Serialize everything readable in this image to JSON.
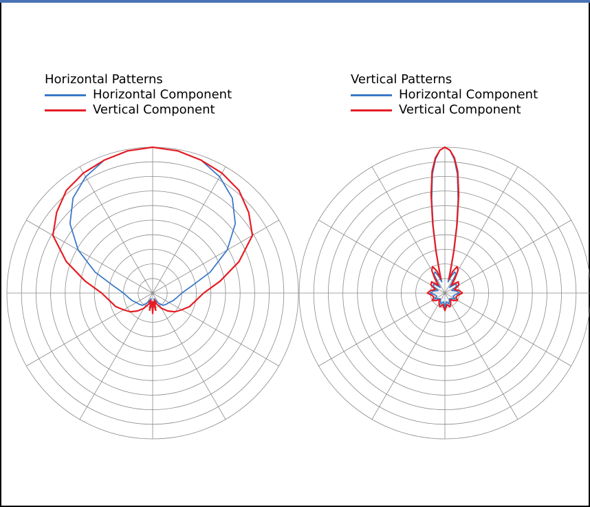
{
  "colors": {
    "horizontal_component": "#3a78c8",
    "vertical_component": "#e51c23",
    "grid": "#888888",
    "frame_top": "#4a73b6"
  },
  "chart_data": [
    {
      "type": "polar",
      "title": "Horizontal Patterns",
      "legend": [
        "Horizontal Component",
        "Vertical Component"
      ],
      "angular_unit": "deg",
      "radial_range": [
        0,
        1
      ],
      "radial_rings": 10,
      "spokes": 12,
      "grid": true,
      "series": [
        {
          "name": "Horizontal Component",
          "angles": [
            0,
            10,
            20,
            30,
            40,
            50,
            60,
            70,
            80,
            90,
            100,
            110,
            120,
            130,
            140,
            150,
            160,
            165,
            170,
            175,
            180,
            185,
            190,
            195,
            200,
            210,
            220,
            230,
            240,
            250,
            260,
            270,
            280,
            290,
            300,
            310,
            320,
            330,
            340,
            350
          ],
          "values": [
            1.0,
            0.99,
            0.97,
            0.92,
            0.85,
            0.74,
            0.59,
            0.42,
            0.27,
            0.2,
            0.17,
            0.15,
            0.13,
            0.12,
            0.11,
            0.08,
            0.05,
            0.04,
            0.1,
            0.06,
            0.13,
            0.06,
            0.1,
            0.04,
            0.05,
            0.08,
            0.11,
            0.12,
            0.13,
            0.15,
            0.17,
            0.2,
            0.27,
            0.42,
            0.59,
            0.74,
            0.85,
            0.92,
            0.97,
            0.99
          ]
        },
        {
          "name": "Vertical Component",
          "angles": [
            0,
            10,
            20,
            30,
            40,
            50,
            60,
            70,
            80,
            90,
            100,
            110,
            120,
            130,
            140,
            150,
            160,
            165,
            170,
            175,
            180,
            185,
            190,
            195,
            200,
            210,
            220,
            230,
            240,
            250,
            260,
            270,
            280,
            290,
            300,
            310,
            320,
            330,
            340,
            350
          ],
          "values": [
            1.0,
            0.99,
            0.97,
            0.95,
            0.92,
            0.86,
            0.79,
            0.63,
            0.47,
            0.35,
            0.3,
            0.27,
            0.23,
            0.2,
            0.16,
            0.12,
            0.08,
            0.05,
            0.12,
            0.06,
            0.14,
            0.06,
            0.12,
            0.05,
            0.08,
            0.12,
            0.16,
            0.2,
            0.23,
            0.27,
            0.3,
            0.35,
            0.47,
            0.63,
            0.79,
            0.86,
            0.92,
            0.95,
            0.97,
            0.99
          ]
        }
      ]
    },
    {
      "type": "polar",
      "title": "Vertical Patterns",
      "legend": [
        "Horizontal Component",
        "Vertical Component"
      ],
      "angular_unit": "deg",
      "radial_range": [
        0,
        1
      ],
      "radial_rings": 10,
      "spokes": 12,
      "grid": true,
      "series": [
        {
          "name": "Horizontal Component",
          "angles": [
            0,
            2,
            4,
            6,
            8,
            10,
            12,
            14,
            16,
            20,
            25,
            30,
            35,
            40,
            50,
            60,
            70,
            80,
            90,
            100,
            110,
            120,
            130,
            140,
            150,
            160,
            170,
            180,
            190,
            200,
            210,
            220,
            230,
            240,
            250,
            260,
            270,
            280,
            290,
            300,
            310,
            320,
            325,
            330,
            335,
            340,
            344,
            346,
            348,
            350,
            352,
            354,
            356,
            358
          ],
          "values": [
            1.0,
            0.98,
            0.92,
            0.82,
            0.65,
            0.46,
            0.28,
            0.14,
            0.08,
            0.12,
            0.16,
            0.15,
            0.09,
            0.05,
            0.1,
            0.09,
            0.05,
            0.08,
            0.1,
            0.07,
            0.06,
            0.08,
            0.06,
            0.05,
            0.06,
            0.08,
            0.06,
            0.1,
            0.06,
            0.08,
            0.06,
            0.05,
            0.06,
            0.08,
            0.06,
            0.07,
            0.1,
            0.08,
            0.05,
            0.09,
            0.1,
            0.05,
            0.09,
            0.15,
            0.16,
            0.12,
            0.08,
            0.14,
            0.28,
            0.46,
            0.65,
            0.82,
            0.92,
            0.98
          ]
        },
        {
          "name": "Vertical Component",
          "angles": [
            0,
            2,
            4,
            6,
            8,
            10,
            12,
            14,
            16,
            20,
            25,
            30,
            35,
            40,
            50,
            60,
            70,
            80,
            90,
            100,
            110,
            120,
            130,
            140,
            150,
            160,
            170,
            180,
            190,
            200,
            210,
            220,
            230,
            240,
            250,
            260,
            270,
            280,
            290,
            300,
            310,
            320,
            325,
            330,
            335,
            340,
            344,
            346,
            348,
            350,
            352,
            354,
            356,
            358
          ],
          "values": [
            1.0,
            0.98,
            0.93,
            0.84,
            0.68,
            0.48,
            0.3,
            0.16,
            0.1,
            0.16,
            0.2,
            0.18,
            0.12,
            0.07,
            0.12,
            0.11,
            0.07,
            0.1,
            0.12,
            0.09,
            0.08,
            0.1,
            0.08,
            0.06,
            0.08,
            0.1,
            0.08,
            0.12,
            0.08,
            0.1,
            0.08,
            0.06,
            0.08,
            0.1,
            0.08,
            0.09,
            0.12,
            0.1,
            0.07,
            0.11,
            0.12,
            0.07,
            0.12,
            0.18,
            0.2,
            0.16,
            0.1,
            0.16,
            0.3,
            0.48,
            0.68,
            0.84,
            0.93,
            0.98
          ]
        }
      ]
    }
  ]
}
